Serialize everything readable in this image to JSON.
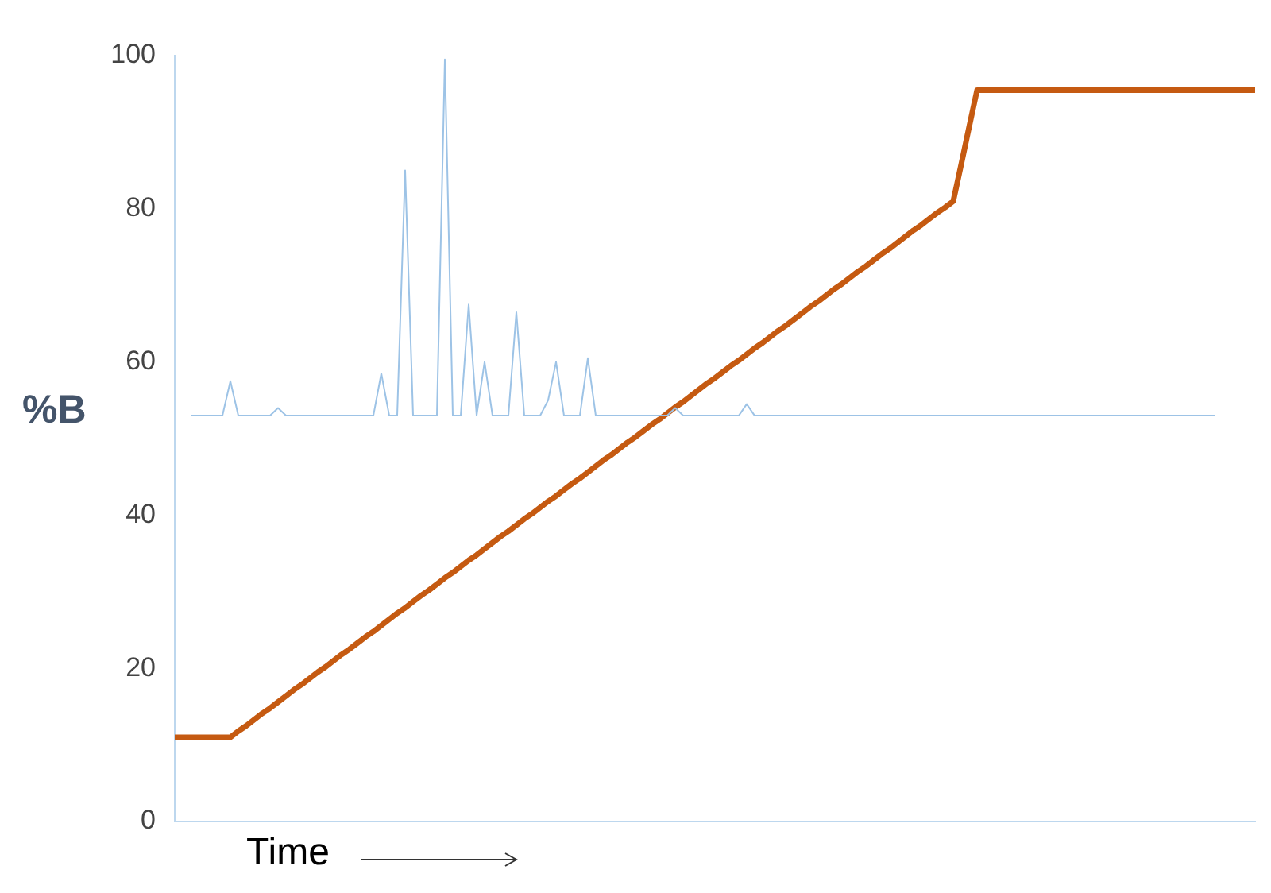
{
  "chart_data": {
    "type": "line",
    "xlabel": "Time",
    "ylabel": "%B",
    "tick_labels": "y",
    "ylim": [
      0,
      100
    ],
    "yticks": [
      0,
      20,
      40,
      60,
      80,
      100
    ],
    "categories": [
      null,
      null,
      null,
      null,
      null,
      null,
      null,
      null,
      null,
      null,
      null,
      null,
      null,
      null,
      null,
      null,
      null,
      null,
      null,
      null,
      null,
      null,
      null,
      null,
      null,
      null,
      null,
      null,
      null,
      null,
      null,
      null,
      null,
      null,
      null,
      null,
      null,
      null,
      null,
      null,
      null,
      null,
      null,
      null,
      null,
      null,
      null,
      null,
      null,
      null,
      null,
      null,
      null,
      null,
      null,
      null,
      null,
      null,
      null,
      null,
      null,
      null,
      null,
      null,
      null,
      null,
      null,
      null,
      null,
      null,
      null,
      null,
      null,
      null,
      null,
      null,
      null,
      null,
      null,
      null,
      null,
      null,
      null,
      null,
      null,
      null,
      null,
      null,
      null,
      null,
      null,
      null,
      null,
      null,
      null,
      null,
      null,
      null,
      null,
      null,
      null,
      null,
      null,
      null,
      null,
      null,
      null,
      null,
      null,
      null,
      null,
      null,
      null,
      null,
      null,
      null,
      null,
      null,
      null,
      null,
      null,
      null,
      null,
      null,
      null,
      null,
      null,
      null,
      null,
      null,
      null,
      null,
      null,
      null,
      null,
      null,
      null
    ],
    "series": [
      {
        "color": "#9dc3e6",
        "values": [
          null,
          null,
          53,
          53,
          53,
          53,
          53,
          57.5,
          53,
          53,
          53,
          53,
          53,
          54,
          53,
          53,
          53,
          53,
          53,
          53,
          53,
          53,
          53,
          53,
          53,
          53,
          58.5,
          53,
          53,
          85,
          53,
          53,
          53,
          53,
          99.5,
          53,
          53,
          67.5,
          53,
          60,
          53,
          53,
          53,
          66.5,
          53,
          53,
          53,
          55,
          60,
          53,
          53,
          53,
          60.5,
          53,
          53,
          53,
          53,
          53,
          53,
          53,
          53,
          53,
          53,
          54,
          53,
          53,
          53,
          53,
          53,
          53,
          53,
          53,
          54.5,
          53,
          53,
          53,
          53,
          53,
          53,
          53,
          53,
          53,
          53,
          53,
          53,
          53,
          53,
          53,
          53,
          53,
          53,
          53,
          53,
          53,
          53,
          53,
          53,
          53,
          53,
          53,
          53,
          53,
          53,
          53,
          53,
          53,
          53,
          53,
          53,
          53,
          53,
          53,
          53,
          53,
          53,
          53,
          53,
          53,
          53,
          53,
          53,
          53,
          53,
          53,
          53,
          53,
          53,
          53,
          53,
          53,
          53,
          53,
          null,
          null,
          null,
          null,
          null
        ]
      },
      {
        "color": "#c55a11",
        "values": [
          11,
          11,
          11,
          11,
          11,
          11,
          11,
          11,
          11.8,
          12.5,
          13.3,
          14.1,
          14.8,
          15.6,
          16.4,
          17.2,
          17.9,
          18.7,
          19.5,
          20.2,
          21.0,
          21.8,
          22.5,
          23.3,
          24.1,
          24.8,
          25.6,
          26.4,
          27.2,
          27.9,
          28.7,
          29.5,
          30.2,
          31.0,
          31.8,
          32.5,
          33.3,
          34.1,
          34.8,
          35.6,
          36.4,
          37.2,
          37.9,
          38.7,
          39.5,
          40.2,
          41.0,
          41.8,
          42.5,
          43.3,
          44.1,
          44.8,
          45.6,
          46.4,
          47.2,
          47.9,
          48.7,
          49.5,
          50.2,
          51.0,
          51.8,
          52.5,
          53.3,
          54.1,
          54.8,
          55.6,
          56.4,
          57.2,
          57.9,
          58.7,
          59.5,
          60.2,
          61.0,
          61.8,
          62.5,
          63.3,
          64.1,
          64.8,
          65.6,
          66.4,
          67.2,
          67.9,
          68.7,
          69.5,
          70.2,
          71.0,
          71.8,
          72.5,
          73.3,
          74.1,
          74.8,
          75.6,
          76.4,
          77.2,
          77.9,
          78.7,
          79.5,
          80.2,
          81,
          85.8,
          90.7,
          95.5,
          95.5,
          95.5,
          95.5,
          95.5,
          95.5,
          95.5,
          95.5,
          95.5,
          95.5,
          95.5,
          95.5,
          95.5,
          95.5,
          95.5,
          95.5,
          95.5,
          95.5,
          95.5,
          95.5,
          95.5,
          95.5,
          95.5,
          95.5,
          95.5,
          95.5,
          95.5,
          95.5,
          95.5,
          95.5,
          95.5,
          95.5,
          95.5,
          95.5,
          95.5,
          95.5
        ]
      }
    ]
  }
}
